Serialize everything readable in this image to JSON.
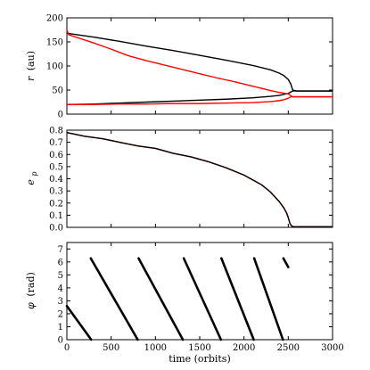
{
  "chart_data": [
    {
      "type": "line",
      "panel": "top",
      "ylabel": "r (au)",
      "ylabel_italic": "r",
      "ylabel_unit": "(au)",
      "xlim": [
        0,
        3000
      ],
      "ylim": [
        0,
        200
      ],
      "yticks": [
        "0",
        "50",
        "100",
        "150",
        "200"
      ],
      "yticks_values": [
        0,
        50,
        100,
        150,
        200
      ],
      "grid": false,
      "series": [
        {
          "color": "#000000",
          "x": [
            0,
            300,
            600,
            900,
            1200,
            1500,
            1800,
            2100,
            2300,
            2400,
            2450,
            2500,
            2530,
            2550,
            2600,
            3000
          ],
          "y": [
            168,
            160,
            151,
            141,
            132,
            122,
            112,
            101,
            92,
            85,
            80,
            72,
            62,
            50,
            48,
            48
          ]
        },
        {
          "color": "#000000",
          "x": [
            0,
            300,
            600,
            900,
            1200,
            1500,
            1800,
            2100,
            2300,
            2400,
            2450,
            2500,
            2530,
            2550,
            2600,
            3000
          ],
          "y": [
            20,
            21,
            23,
            25,
            27,
            29,
            31,
            34,
            37,
            39,
            41,
            43,
            46,
            48,
            48,
            48
          ]
        },
        {
          "color": "#ff0000",
          "x": [
            0,
            20,
            100,
            300,
            500,
            700,
            900,
            1100,
            1300,
            1500,
            1700,
            1900,
            2100,
            2300,
            2400,
            2500,
            2530,
            2550,
            2600,
            3000
          ],
          "y": [
            175,
            165,
            160,
            148,
            135,
            121,
            111,
            102,
            93,
            84,
            75,
            67,
            58,
            49,
            45,
            42,
            38,
            36,
            36,
            36
          ]
        },
        {
          "color": "#ff0000",
          "x": [
            0,
            300,
            600,
            900,
            1200,
            1500,
            1800,
            2100,
            2300,
            2400,
            2450,
            2500,
            2530,
            2550,
            2600,
            3000
          ],
          "y": [
            20,
            20,
            21,
            21,
            22,
            22,
            23,
            24,
            26,
            28,
            30,
            33,
            36,
            36,
            36,
            36
          ]
        }
      ]
    },
    {
      "type": "line",
      "panel": "middle",
      "ylabel": "e_p",
      "ylabel_italic": "e",
      "ylabel_sub": "p",
      "xlim": [
        0,
        3000
      ],
      "ylim": [
        0,
        0.8
      ],
      "yticks": [
        "0.0",
        "0.1",
        "0.2",
        "0.3",
        "0.4",
        "0.5",
        "0.6",
        "0.7",
        "0.8"
      ],
      "yticks_values": [
        0,
        0.1,
        0.2,
        0.3,
        0.4,
        0.5,
        0.6,
        0.7,
        0.8
      ],
      "grid": false,
      "series": [
        {
          "color": "#ff0000",
          "x": [
            0,
            200,
            400,
            600,
            800,
            1000,
            1200,
            1400,
            1600,
            1800,
            2000,
            2100,
            2200,
            2300,
            2400,
            2450,
            2480,
            2500,
            2520,
            2540,
            2560,
            2600,
            3000
          ],
          "y": [
            0.78,
            0.75,
            0.73,
            0.7,
            0.67,
            0.65,
            0.61,
            0.58,
            0.54,
            0.49,
            0.43,
            0.39,
            0.35,
            0.29,
            0.21,
            0.16,
            0.12,
            0.08,
            0.03,
            0.01,
            0.005,
            0.005,
            0.005
          ]
        },
        {
          "color": "#000000",
          "x": [
            0,
            200,
            400,
            600,
            800,
            1000,
            1200,
            1400,
            1600,
            1800,
            2000,
            2100,
            2200,
            2300,
            2400,
            2450,
            2480,
            2500,
            2520,
            2540,
            2560,
            2600,
            3000
          ],
          "y": [
            0.78,
            0.75,
            0.73,
            0.7,
            0.67,
            0.65,
            0.61,
            0.58,
            0.54,
            0.49,
            0.43,
            0.39,
            0.35,
            0.29,
            0.21,
            0.16,
            0.12,
            0.08,
            0.03,
            0.01,
            0.005,
            0.005,
            0.005
          ]
        }
      ]
    },
    {
      "type": "scatter",
      "panel": "bottom",
      "xlabel": "time (orbits)",
      "ylabel": "φ (rad)",
      "ylabel_italic": "φ",
      "ylabel_unit": "(rad)",
      "xlim": [
        0,
        3000
      ],
      "ylim": [
        0,
        7.5
      ],
      "xticks": [
        "0",
        "500",
        "1000",
        "1500",
        "2000",
        "2500",
        "3000"
      ],
      "xticks_values": [
        0,
        500,
        1000,
        1500,
        2000,
        2500,
        3000
      ],
      "yticks": [
        "0",
        "1",
        "2",
        "3",
        "4",
        "5",
        "6",
        "7"
      ],
      "yticks_values": [
        0,
        1,
        2,
        3,
        4,
        5,
        6,
        7
      ],
      "grid": false,
      "series": [
        {
          "color": "#000000",
          "segments": [
            {
              "x": [
                0,
                275
              ],
              "y": [
                2.6,
                0
              ]
            },
            {
              "x": [
                270,
                800
              ],
              "y": [
                6.28,
                0
              ]
            },
            {
              "x": [
                810,
                1310
              ],
              "y": [
                6.28,
                0
              ]
            },
            {
              "x": [
                1320,
                1740
              ],
              "y": [
                6.28,
                0
              ]
            },
            {
              "x": [
                1745,
                2110
              ],
              "y": [
                6.28,
                0
              ]
            },
            {
              "x": [
                2115,
                2440
              ],
              "y": [
                6.28,
                0
              ]
            },
            {
              "x": [
                2445,
                2500
              ],
              "y": [
                6.28,
                5.6
              ]
            }
          ]
        }
      ]
    }
  ]
}
